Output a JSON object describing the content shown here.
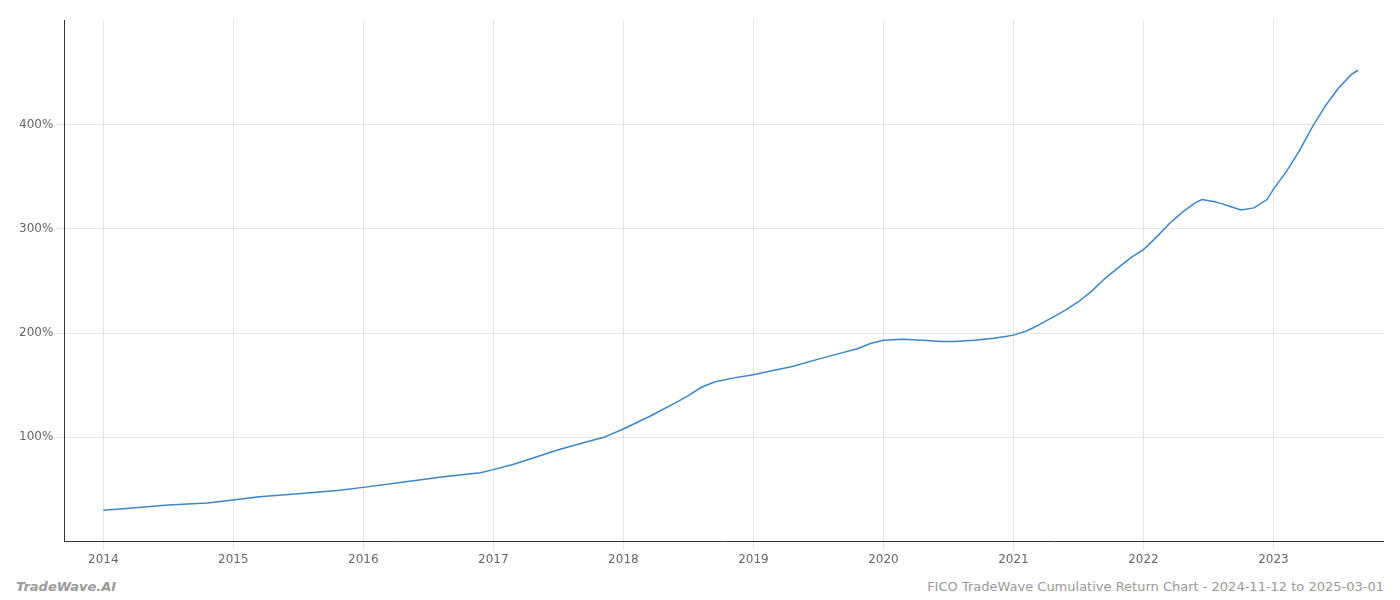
{
  "chart_data": {
    "type": "line",
    "color": "#3a86c8",
    "x": [
      2014.0,
      2014.2,
      2014.5,
      2014.8,
      2015.0,
      2015.2,
      2015.5,
      2015.8,
      2016.0,
      2016.3,
      2016.6,
      2016.9,
      2017.0,
      2017.15,
      2017.3,
      2017.5,
      2017.7,
      2017.85,
      2018.0,
      2018.2,
      2018.4,
      2018.5,
      2018.6,
      2018.7,
      2018.85,
      2019.0,
      2019.15,
      2019.3,
      2019.5,
      2019.65,
      2019.8,
      2019.9,
      2020.0,
      2020.15,
      2020.3,
      2020.45,
      2020.55,
      2020.7,
      2020.85,
      2020.95,
      2021.0,
      2021.1,
      2021.2,
      2021.3,
      2021.4,
      2021.5,
      2021.6,
      2021.7,
      2021.8,
      2021.9,
      2022.0,
      2022.1,
      2022.2,
      2022.3,
      2022.4,
      2022.45,
      2022.55,
      2022.65,
      2022.75,
      2022.85,
      2022.95,
      2023.0,
      2023.1,
      2023.2,
      2023.3,
      2023.4,
      2023.5,
      2023.6,
      2023.65
    ],
    "values": [
      30,
      32,
      35,
      37,
      40,
      43,
      46,
      49,
      52,
      57,
      62,
      66,
      69,
      74,
      80,
      88,
      95,
      100,
      108,
      120,
      133,
      140,
      148,
      153,
      157,
      160,
      164,
      168,
      175,
      180,
      185,
      190,
      193,
      194,
      193,
      192,
      192,
      193,
      195,
      197,
      198,
      202,
      208,
      215,
      222,
      230,
      240,
      252,
      262,
      272,
      280,
      292,
      305,
      316,
      325,
      328,
      326,
      322,
      318,
      320,
      328,
      338,
      355,
      375,
      398,
      418,
      435,
      448,
      452
    ],
    "xlim": [
      2013.7,
      2023.85
    ],
    "xticks": [
      2014,
      2015,
      2016,
      2017,
      2018,
      2019,
      2020,
      2021,
      2022,
      2023
    ],
    "ylim": [
      0,
      500
    ],
    "yticks": [
      {
        "value": 100,
        "label": "100%"
      },
      {
        "value": 200,
        "label": "200%"
      },
      {
        "value": 300,
        "label": "300%"
      },
      {
        "value": 400,
        "label": "400%"
      }
    ],
    "grid": true,
    "annotations": [
      "TradeWave.AI",
      "FICO TradeWave Cumulative Return Chart - 2024-11-12 to 2025-03-01"
    ]
  }
}
